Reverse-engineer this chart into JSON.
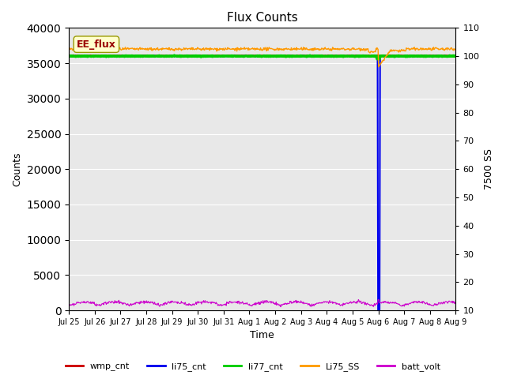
{
  "title": "Flux Counts",
  "xlabel": "Time",
  "ylabel_left": "Counts",
  "ylabel_right": "7500 SS",
  "annotation_text": "EE_flux",
  "x_tick_labels": [
    "Jul 25",
    "Jul 26",
    "Jul 27",
    "Jul 28",
    "Jul 29",
    "Jul 30",
    "Jul 31",
    "Aug 1",
    "Aug 2",
    "Aug 3",
    "Aug 4",
    "Aug 5",
    "Aug 6",
    "Aug 7",
    "Aug 8",
    "Aug 9"
  ],
  "ylim_left": [
    0,
    40000
  ],
  "ylim_right": [
    10,
    110
  ],
  "yticks_left": [
    0,
    5000,
    10000,
    15000,
    20000,
    25000,
    30000,
    35000,
    40000
  ],
  "yticks_right": [
    10,
    20,
    30,
    40,
    50,
    60,
    70,
    80,
    90,
    100,
    110
  ],
  "bg_color": "#e8e8e8",
  "line_colors": {
    "wmp_cnt": "#cc0000",
    "li75_cnt": "#0000ee",
    "li77_cnt": "#00cc00",
    "Li75_SS": "#ff9900",
    "batt_volt": "#cc00cc"
  },
  "legend_labels": [
    "wmp_cnt",
    "li75_cnt",
    "li77_cnt",
    "Li75_SS",
    "batt_volt"
  ],
  "li77_cnt_value": 36000,
  "Li75_SS_base": 37000,
  "wmp_cnt_value": 36100,
  "aug6_day": 12,
  "n_days": 16,
  "batt_volt_base": 700,
  "batt_volt_amp": 500
}
